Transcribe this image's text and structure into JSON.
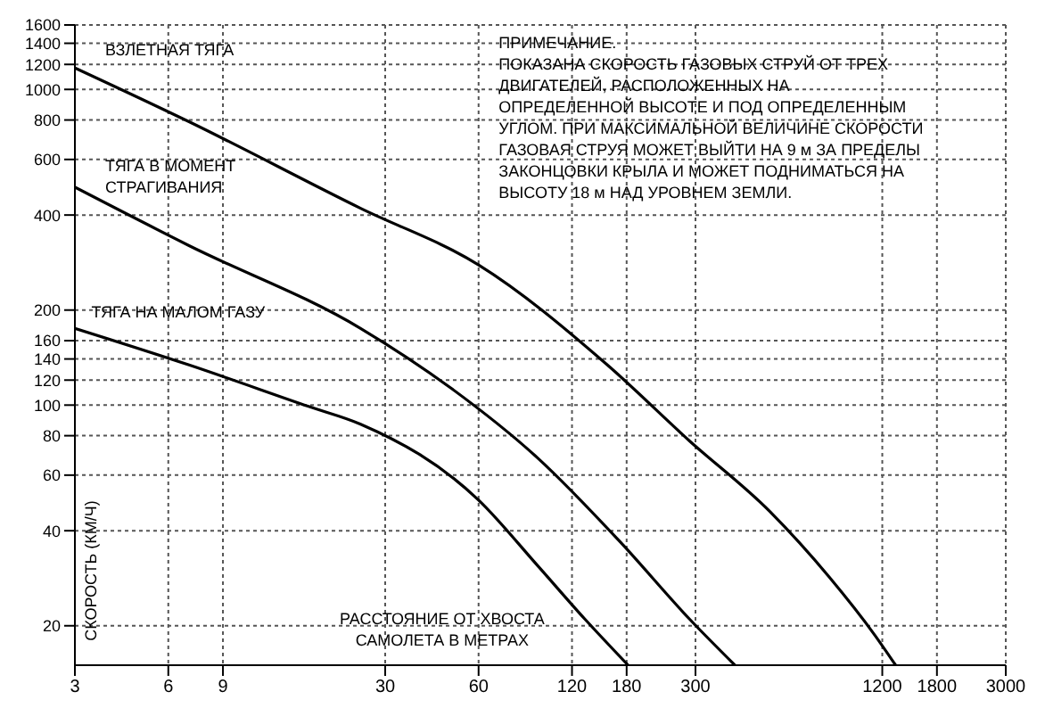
{
  "chart_data": {
    "type": "line",
    "xlabel": "РАССТОЯНИЕ ОТ ХВОСТА САМОЛЕТА В МЕТРАХ",
    "ylabel": "СКОРОСТЬ (КМ/Ч)",
    "annotations": [
      "ПРИМЕЧАНИЕ.",
      "ПОКАЗАНА СКОРОСТЬ ГАЗОВЫХ СТРУЙ ОТ ТРЕХ ДВИГАТЕЛЕЙ, РАСПОЛОЖЕННЫХ НА ОПРЕДЕЛЕННОЙ ВЫСОТЕ И ПОД ОПРЕДЕЛЕННЫМ УГЛОМ. ПРИ МАКСИМАЛЬНОЙ ВЕЛИЧИНЕ СКОРОСТИ ГАЗОВАЯ СТРУЯ МОЖЕТ ВЫЙТИ НА 9 м ЗА ПРЕДЕЛЫ ЗАКОНЦОВКИ КРЫЛА И МОЖЕТ ПОДНИМАТЬСЯ НА ВЫСОТУ 18 м НАД УРОВНЕМ ЗЕМЛИ."
    ],
    "log": "xy",
    "grid": true,
    "legend": false,
    "marker": "none",
    "line_style": "solid",
    "xlim": [
      3,
      3000
    ],
    "xticks": [
      3,
      6,
      9,
      30,
      60,
      120,
      180,
      300,
      1200,
      1800,
      3000
    ],
    "ylim": [
      15,
      1600
    ],
    "yticks": [
      20,
      40,
      60,
      80,
      100,
      120,
      140,
      160,
      200,
      400,
      600,
      800,
      1000,
      1200,
      1400,
      1600
    ],
    "series": [
      {
        "name": "ВЗЛЕТНАЯ ТЯГА",
        "color": "#000000",
        "x": [
          3,
          7,
          25,
          60,
          156,
          287,
          521,
          810,
          1134,
          1325
        ],
        "values": [
          1170,
          790,
          420,
          278,
          134,
          77,
          46,
          28.5,
          18.7,
          15
        ]
      },
      {
        "name": "ТЯГА В МОМЕНТ СТРАГИВАНИЯ",
        "color": "#000000",
        "x": [
          3,
          7,
          25,
          49,
          93,
          171,
          287,
          402
        ],
        "values": [
          490,
          320,
          175,
          113,
          68,
          37,
          21,
          15
        ]
      },
      {
        "name": "ТЯГА НА МАЛОМ ГАЗУ",
        "color": "#000000",
        "x": [
          3,
          7,
          17,
          25,
          60,
          93,
          132,
          182
        ],
        "values": [
          175,
          134,
          99,
          87,
          50,
          31,
          21,
          15
        ]
      }
    ]
  }
}
